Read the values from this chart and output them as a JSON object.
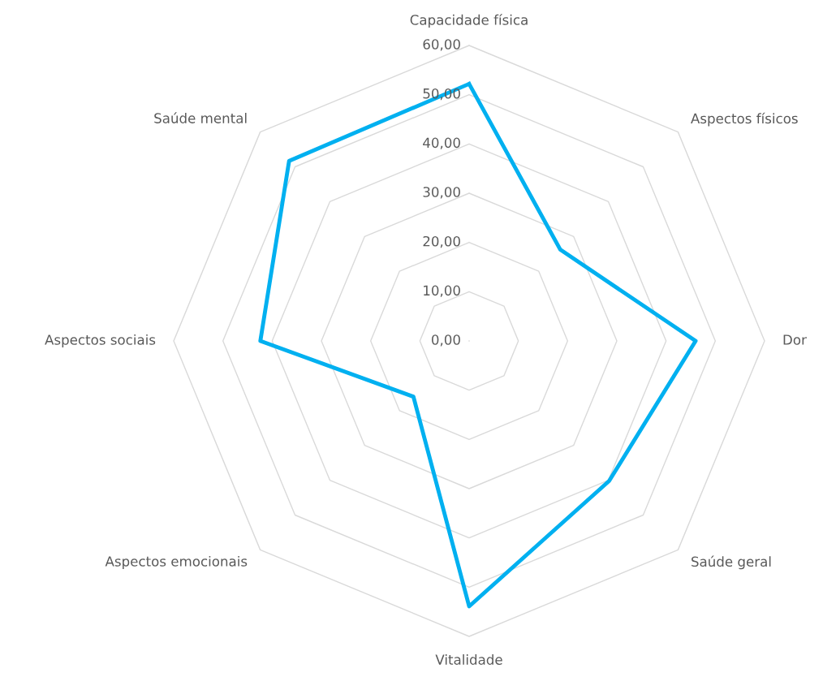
{
  "chart_data": {
    "type": "radar",
    "categories": [
      "Capacidade física",
      "Aspectos físicos",
      "Dor",
      "Saúde geral",
      "Vitalidade",
      "Aspectos emocionais",
      "Aspectos sociais",
      "Saúde mental"
    ],
    "series": [
      {
        "color": "#00b0f0",
        "values": [
          52.2,
          26.2,
          46.0,
          40.2,
          53.9,
          16.0,
          42.4,
          51.7
        ]
      }
    ],
    "ylim": [
      0,
      60
    ],
    "yticks": [
      {
        "value": 0,
        "label": "0,00"
      },
      {
        "value": 10,
        "label": "10,00"
      },
      {
        "value": 20,
        "label": "20,00"
      },
      {
        "value": 30,
        "label": "30,00"
      },
      {
        "value": 40,
        "label": "40,00"
      },
      {
        "value": 50,
        "label": "50,00"
      },
      {
        "value": 60,
        "label": "60,00"
      }
    ],
    "grid": true
  }
}
